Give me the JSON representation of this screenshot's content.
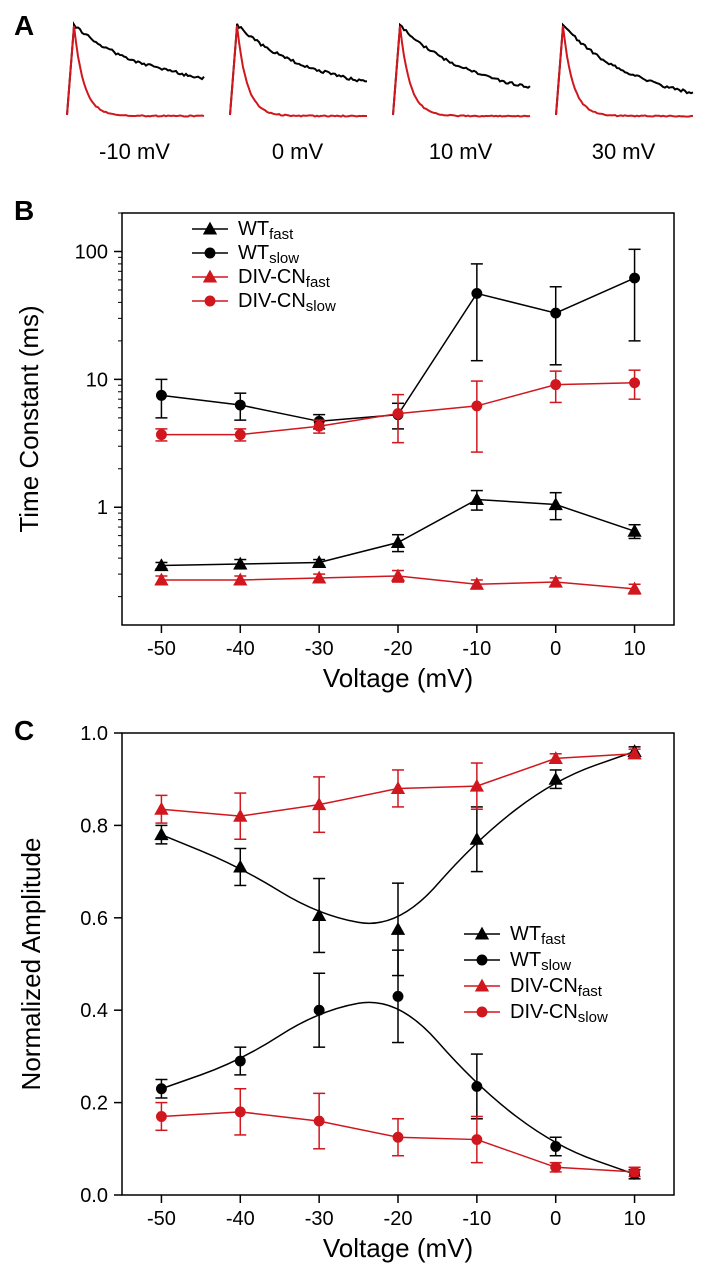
{
  "panel_labels": {
    "A": "A",
    "B": "B",
    "C": "C"
  },
  "colors": {
    "wt": "#000000",
    "divcn": "#d0171e",
    "axis": "#000000",
    "bg": "#ffffff"
  },
  "panelA": {
    "trace_labels": [
      "-10 mV",
      "0 mV",
      "10 mV",
      "30 mV"
    ],
    "trace_fontsize": 22,
    "line_width": 2,
    "wt_color": "#000000",
    "div_color": "#d0171e"
  },
  "panelB": {
    "type": "line-scatter-logy",
    "xlabel": "Voltage (mV)",
    "ylabel": "Time Constant (ms)",
    "label_fontsize": 26,
    "tick_fontsize": 20,
    "xlim": [
      -55,
      15
    ],
    "xticks": [
      -50,
      -40,
      -30,
      -20,
      -10,
      0,
      10
    ],
    "ylim": [
      0.12,
      200
    ],
    "yticks": [
      1,
      10,
      100
    ],
    "ytick_labels": [
      "1",
      "10",
      "100"
    ],
    "legend": {
      "items": [
        {
          "marker": "triangle",
          "color": "#000000",
          "label_base": "WT",
          "label_sub": "fast"
        },
        {
          "marker": "circle",
          "color": "#000000",
          "label_base": "WT",
          "label_sub": "slow"
        },
        {
          "marker": "triangle",
          "color": "#d0171e",
          "label_base": "DIV-CN",
          "label_sub": "fast"
        },
        {
          "marker": "circle",
          "color": "#d0171e",
          "label_base": "DIV-CN",
          "label_sub": "slow"
        }
      ],
      "fontsize": 20,
      "position": "top-center-inside"
    },
    "line_width": 1.5,
    "marker_size": 9,
    "error_cap": 6,
    "series": {
      "wt_fast": {
        "x": [
          -50,
          -40,
          -30,
          -20,
          -10,
          0,
          10
        ],
        "y": [
          0.35,
          0.36,
          0.37,
          0.53,
          1.15,
          1.05,
          0.65
        ],
        "err": [
          0.02,
          0.03,
          0.02,
          0.08,
          0.2,
          0.25,
          0.08
        ],
        "color": "#000000",
        "marker": "triangle"
      },
      "wt_slow": {
        "x": [
          -50,
          -40,
          -30,
          -20,
          -10,
          0,
          10
        ],
        "y": [
          7.5,
          6.3,
          4.7,
          5.3,
          47,
          33,
          62
        ],
        "err": [
          2.5,
          1.5,
          0.6,
          1.2,
          33,
          20,
          42
        ],
        "color": "#000000",
        "marker": "circle"
      },
      "div_fast": {
        "x": [
          -50,
          -40,
          -30,
          -20,
          -10,
          0,
          10
        ],
        "y": [
          0.27,
          0.27,
          0.28,
          0.29,
          0.25,
          0.26,
          0.23
        ],
        "err": [
          0.02,
          0.02,
          0.02,
          0.03,
          0.02,
          0.02,
          0.02
        ],
        "color": "#d0171e",
        "marker": "triangle"
      },
      "div_slow": {
        "x": [
          -50,
          -40,
          -30,
          -20,
          -10,
          0,
          10
        ],
        "y": [
          3.7,
          3.7,
          4.3,
          5.4,
          6.2,
          9.1,
          9.4
        ],
        "err": [
          0.4,
          0.4,
          0.5,
          2.2,
          3.5,
          2.5,
          2.4
        ],
        "color": "#d0171e",
        "marker": "circle"
      }
    }
  },
  "panelC": {
    "type": "line-scatter",
    "xlabel": "Voltage (mV)",
    "ylabel": "Normalized Amplitude",
    "label_fontsize": 26,
    "tick_fontsize": 20,
    "xlim": [
      -55,
      15
    ],
    "xticks": [
      -50,
      -40,
      -30,
      -20,
      -10,
      0,
      10
    ],
    "ylim": [
      0.0,
      1.0
    ],
    "yticks": [
      0.0,
      0.2,
      0.4,
      0.6,
      0.8,
      1.0
    ],
    "ytick_labels": [
      "0.0",
      "0.2",
      "0.4",
      "0.6",
      "0.8",
      "1.0"
    ],
    "legend": {
      "items": [
        {
          "marker": "triangle",
          "color": "#000000",
          "label_base": "WT",
          "label_sub": "fast"
        },
        {
          "marker": "circle",
          "color": "#000000",
          "label_base": "WT",
          "label_sub": "slow"
        },
        {
          "marker": "triangle",
          "color": "#d0171e",
          "label_base": "DIV-CN",
          "label_sub": "fast"
        },
        {
          "marker": "circle",
          "color": "#d0171e",
          "label_base": "DIV-CN",
          "label_sub": "slow"
        }
      ],
      "fontsize": 20,
      "position": "right-inside"
    },
    "line_width": 1.5,
    "marker_size": 9,
    "error_cap": 6,
    "series": {
      "wt_fast": {
        "x": [
          -50,
          -40,
          -30,
          -20,
          -10,
          0,
          10
        ],
        "y": [
          0.78,
          0.71,
          0.605,
          0.575,
          0.77,
          0.9,
          0.96
        ],
        "err": [
          0.02,
          0.04,
          0.08,
          0.1,
          0.07,
          0.02,
          0.01
        ],
        "color": "#000000",
        "marker": "triangle"
      },
      "wt_slow": {
        "x": [
          -50,
          -40,
          -30,
          -20,
          -10,
          0,
          10
        ],
        "y": [
          0.23,
          0.29,
          0.4,
          0.43,
          0.235,
          0.105,
          0.045
        ],
        "err": [
          0.02,
          0.03,
          0.08,
          0.1,
          0.07,
          0.02,
          0.01
        ],
        "color": "#000000",
        "marker": "circle"
      },
      "div_fast": {
        "x": [
          -50,
          -40,
          -30,
          -20,
          -10,
          0,
          10
        ],
        "y": [
          0.835,
          0.82,
          0.845,
          0.88,
          0.885,
          0.945,
          0.955
        ],
        "err": [
          0.03,
          0.05,
          0.06,
          0.04,
          0.05,
          0.01,
          0.01
        ],
        "color": "#d0171e",
        "marker": "triangle"
      },
      "div_slow": {
        "x": [
          -50,
          -40,
          -30,
          -20,
          -10,
          0,
          10
        ],
        "y": [
          0.17,
          0.18,
          0.16,
          0.125,
          0.12,
          0.06,
          0.05
        ],
        "err": [
          0.03,
          0.05,
          0.06,
          0.04,
          0.05,
          0.01,
          0.01
        ],
        "color": "#d0171e",
        "marker": "circle"
      }
    }
  }
}
